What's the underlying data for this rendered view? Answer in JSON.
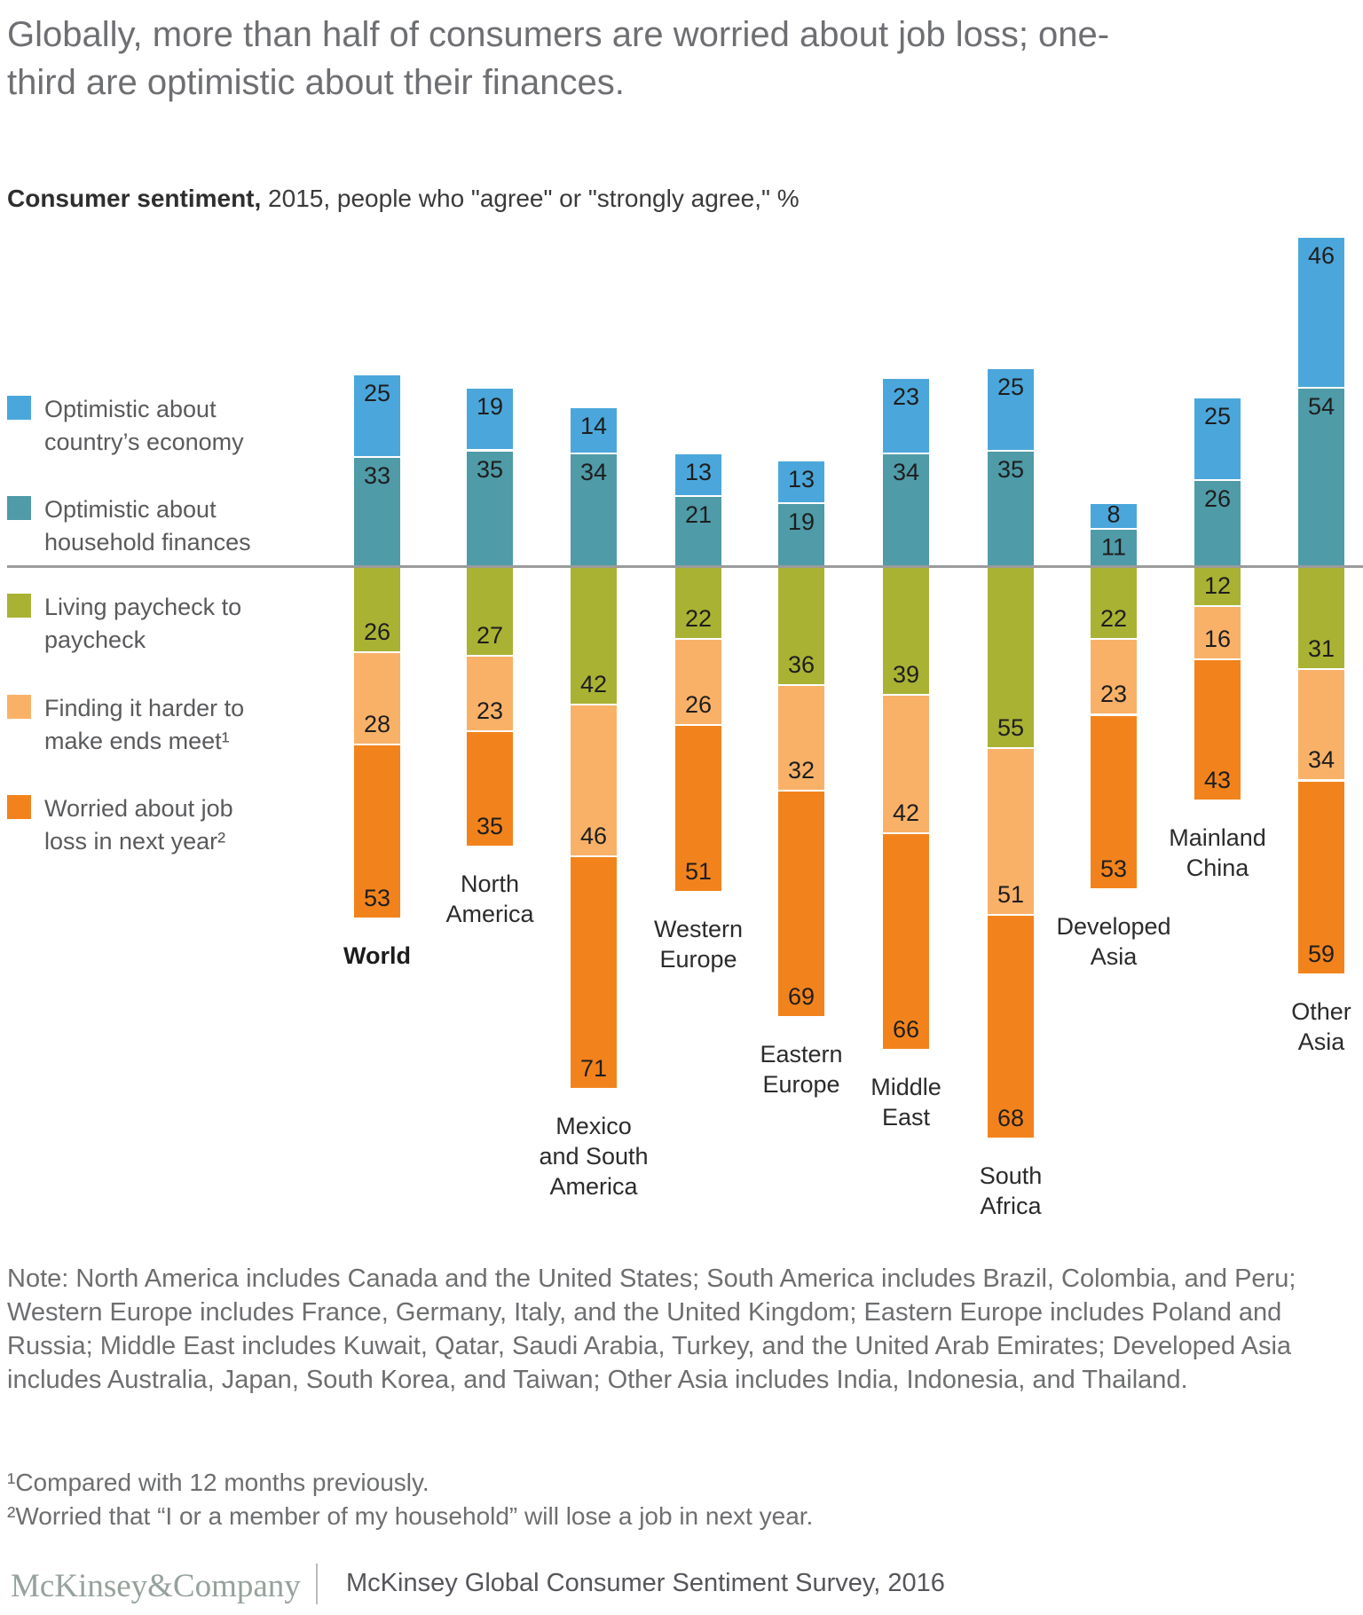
{
  "title": "Globally, more than half of consumers are worried about job loss; one-third are optimistic about their finances.",
  "subtitle": {
    "lead": "Consumer sentiment,",
    "rest": " 2015, people who \"agree\" or \"strongly agree,\" %"
  },
  "legend": [
    {
      "key": "economy",
      "lines": [
        "Optimistic about",
        "country’s economy"
      ]
    },
    {
      "key": "finances",
      "lines": [
        "Optimistic about",
        "household finances"
      ]
    },
    {
      "key": "paycheck",
      "lines": [
        "Living paycheck to",
        "paycheck"
      ]
    },
    {
      "key": "harder",
      "lines": [
        "Finding it harder to",
        "make ends meet¹"
      ]
    },
    {
      "key": "jobloss",
      "lines": [
        "Worried about job",
        "loss in next year²"
      ]
    }
  ],
  "colors": {
    "economy": "#4BA7DB",
    "finances": "#4F9BA8",
    "paycheck": "#A9B233",
    "harder": "#F9B168",
    "jobloss": "#F2831C",
    "baseline": "#9B9B9B"
  },
  "chart_data": {
    "type": "bar",
    "subtype": "diverging-stacked-column",
    "unit": "%",
    "year": "2015",
    "series_above_baseline": [
      "Optimistic about country's economy",
      "Optimistic about household finances"
    ],
    "series_below_baseline": [
      "Living paycheck to paycheck",
      "Finding it harder to make ends meet",
      "Worried about job loss in next year"
    ],
    "value_order": [
      "economy",
      "finances",
      "paycheck",
      "harder",
      "jobloss"
    ],
    "regions": [
      {
        "name": "World",
        "lines": [
          "World"
        ],
        "bold": true,
        "values": [
          25,
          33,
          26,
          28,
          53
        ]
      },
      {
        "name": "North America",
        "lines": [
          "North",
          "America"
        ],
        "bold": false,
        "values": [
          19,
          35,
          27,
          23,
          35
        ]
      },
      {
        "name": "Mexico and South America",
        "lines": [
          "Mexico",
          "and South",
          "America"
        ],
        "bold": false,
        "values": [
          14,
          34,
          42,
          46,
          71
        ]
      },
      {
        "name": "Western Europe",
        "lines": [
          "Western",
          "Europe"
        ],
        "bold": false,
        "values": [
          13,
          21,
          22,
          26,
          51
        ]
      },
      {
        "name": "Eastern Europe",
        "lines": [
          "Eastern",
          "Europe"
        ],
        "bold": false,
        "values": [
          13,
          19,
          36,
          32,
          69
        ]
      },
      {
        "name": "Middle East",
        "lines": [
          "Middle",
          "East"
        ],
        "bold": false,
        "values": [
          23,
          34,
          39,
          42,
          66
        ]
      },
      {
        "name": "South Africa",
        "lines": [
          "South",
          "Africa"
        ],
        "bold": false,
        "values": [
          25,
          35,
          55,
          51,
          68
        ]
      },
      {
        "name": "Developed Asia",
        "lines": [
          "Developed",
          "Asia"
        ],
        "bold": false,
        "values": [
          8,
          11,
          22,
          23,
          53
        ]
      },
      {
        "name": "Mainland China",
        "lines": [
          "Mainland",
          "China"
        ],
        "bold": false,
        "values": [
          25,
          26,
          12,
          16,
          43
        ]
      },
      {
        "name": "Other Asia",
        "lines": [
          "Other",
          "Asia"
        ],
        "bold": false,
        "values": [
          46,
          54,
          31,
          34,
          59
        ]
      }
    ]
  },
  "note": "Note: North America includes Canada and the United States; South America includes Brazil, Colombia, and Peru; Western Europe includes France, Germany, Italy, and the United Kingdom; Eastern Europe includes Poland and Russia; Middle East includes Kuwait, Qatar, Saudi Arabia, Turkey, and the United Arab Emirates; Developed Asia includes Australia, Japan, South Korea, and Taiwan; Other Asia includes India, Indonesia, and Thailand.",
  "footnotes": [
    "¹Compared with 12 months previously.",
    "²Worried that “I or a member of my household” will lose a job in next year."
  ],
  "footer": {
    "logo": "McKinsey&Company",
    "source": "McKinsey Global Consumer Sentiment Survey, 2016"
  }
}
